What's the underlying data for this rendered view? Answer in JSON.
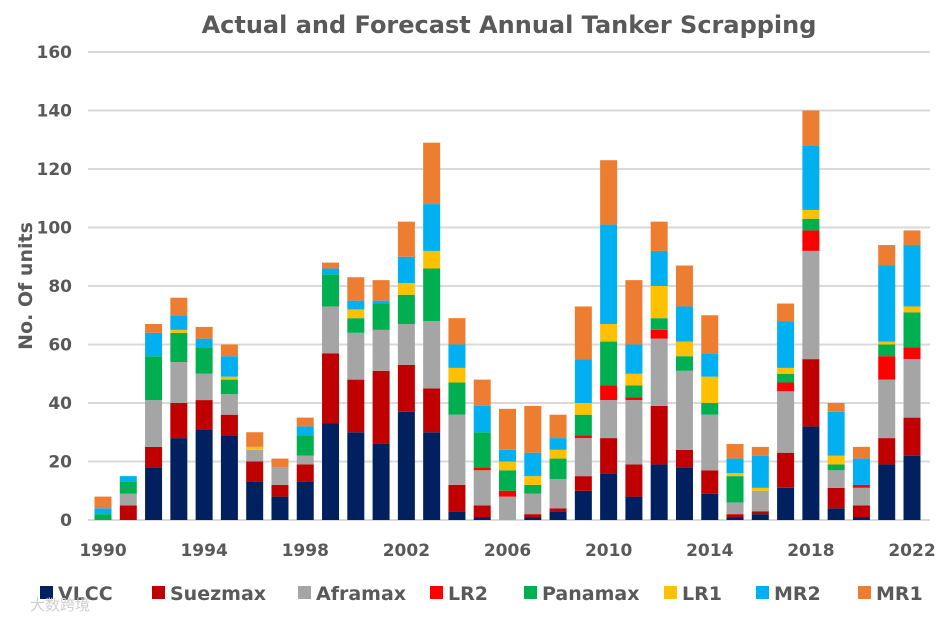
{
  "chart_data": {
    "type": "bar",
    "stacked": true,
    "title": "Actual and Forecast Annual Tanker Scrapping",
    "xlabel": "",
    "ylabel": "No. Of units",
    "ylim": [
      0,
      160
    ],
    "yticks": [
      0,
      20,
      40,
      60,
      80,
      100,
      120,
      140,
      160
    ],
    "xtick_labels": [
      "1990",
      "1994",
      "1998",
      "2002",
      "2006",
      "2010",
      "2014",
      "2018",
      "2022"
    ],
    "grid": true,
    "legend_position": "bottom",
    "categories": [
      "1990",
      "1991",
      "1992",
      "1993",
      "1994",
      "1995",
      "1996",
      "1997",
      "1998",
      "1999",
      "2000",
      "2001",
      "2002",
      "2003",
      "2004",
      "2005",
      "2006",
      "2007",
      "2008",
      "2009",
      "2010",
      "2011",
      "2012",
      "2013",
      "2014",
      "2015",
      "2016",
      "2017",
      "2018",
      "2019",
      "2020",
      "2021",
      "2022"
    ],
    "series": [
      {
        "name": "VLCC",
        "color": "#002060",
        "values": [
          0,
          0,
          18,
          28,
          31,
          29,
          13,
          8,
          13,
          33,
          30,
          26,
          37,
          30,
          3,
          1,
          0,
          1,
          3,
          10,
          16,
          8,
          19,
          18,
          9,
          1,
          2,
          11,
          32,
          4,
          1,
          19,
          22
        ]
      },
      {
        "name": "Suezmax",
        "color": "#C00000",
        "values": [
          0,
          5,
          7,
          12,
          10,
          7,
          7,
          4,
          6,
          24,
          18,
          25,
          16,
          15,
          9,
          4,
          0,
          1,
          1,
          5,
          12,
          11,
          20,
          6,
          8,
          1,
          1,
          12,
          23,
          7,
          4,
          9,
          13
        ]
      },
      {
        "name": "Aframax",
        "color": "#A5A5A5",
        "values": [
          0,
          4,
          16,
          14,
          9,
          7,
          4,
          6,
          3,
          16,
          16,
          14,
          14,
          23,
          24,
          12,
          8,
          7,
          10,
          13,
          13,
          22,
          23,
          27,
          19,
          4,
          7,
          21,
          37,
          6,
          6,
          20,
          20
        ]
      },
      {
        "name": "LR2",
        "color": "#FF0000",
        "values": [
          0,
          0,
          0,
          0,
          0,
          0,
          0,
          0,
          0,
          0,
          0,
          0,
          0,
          0,
          0,
          1,
          2,
          0,
          0,
          1,
          5,
          1,
          3,
          0,
          0,
          0,
          0,
          3,
          7,
          0,
          1,
          8,
          4
        ]
      },
      {
        "name": "Panamax",
        "color": "#00B050",
        "values": [
          2,
          4,
          15,
          10,
          9,
          5,
          0,
          0,
          7,
          11,
          5,
          9,
          10,
          18,
          11,
          12,
          7,
          3,
          7,
          7,
          15,
          4,
          4,
          5,
          4,
          9,
          0,
          3,
          4,
          2,
          0,
          4,
          12
        ]
      },
      {
        "name": "LR1",
        "color": "#FFC000",
        "values": [
          0,
          0,
          0,
          1,
          0,
          1,
          1,
          0,
          0,
          0,
          3,
          0,
          4,
          6,
          5,
          0,
          3,
          3,
          3,
          4,
          6,
          4,
          11,
          5,
          9,
          1,
          1,
          2,
          3,
          3,
          0,
          1,
          2
        ]
      },
      {
        "name": "MR2",
        "color": "#00B0F0",
        "values": [
          2,
          2,
          8,
          5,
          3,
          7,
          0,
          0,
          3,
          2,
          3,
          1,
          9,
          16,
          8,
          9,
          4,
          8,
          4,
          15,
          34,
          10,
          12,
          12,
          8,
          5,
          11,
          16,
          22,
          15,
          9,
          26,
          21
        ]
      },
      {
        "name": "MR1",
        "color": "#ED7D31",
        "values": [
          4,
          0,
          3,
          6,
          4,
          4,
          5,
          3,
          3,
          2,
          8,
          7,
          12,
          21,
          9,
          9,
          14,
          16,
          8,
          18,
          22,
          22,
          10,
          14,
          13,
          5,
          3,
          6,
          12,
          3,
          4,
          7,
          5
        ]
      }
    ]
  },
  "watermark": "大数跨境"
}
